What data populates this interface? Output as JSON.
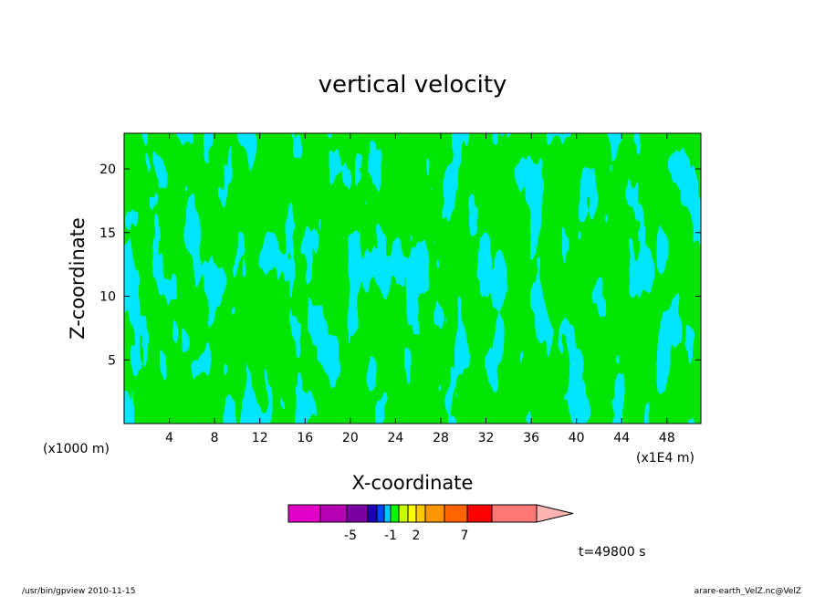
{
  "chart_data": {
    "type": "heatmap",
    "title": "vertical velocity",
    "xlabel": "X-coordinate",
    "ylabel": "Z-coordinate",
    "x_unit": "(x1000 m)",
    "x_unit_right": "(x1E4 m)",
    "xlim": [
      0,
      51
    ],
    "ylim": [
      0,
      22.8
    ],
    "x_ticks": [
      4,
      8,
      12,
      16,
      20,
      24,
      28,
      32,
      36,
      40,
      44,
      48
    ],
    "y_ticks": [
      5,
      10,
      15,
      20
    ],
    "x_tick_labels": [
      "4",
      "8",
      "12",
      "16",
      "20",
      "24",
      "28",
      "32",
      "36",
      "40",
      "44",
      "48"
    ],
    "y_tick_labels": [
      "5",
      "10",
      "15",
      "20"
    ],
    "colorbar": {
      "colors": [
        "#e000c8",
        "#b400b4",
        "#7800a0",
        "#1e00b4",
        "#0046ff",
        "#00c8ff",
        "#00ff00",
        "#c8ff00",
        "#ffff00",
        "#ffc800",
        "#ff9600",
        "#ff6400",
        "#ff0000",
        "#ff7878",
        "#ffb4b4"
      ],
      "tick_labels": [
        "-5",
        "-1",
        "2",
        "7"
      ],
      "tick_boundary_index": [
        3,
        6,
        8,
        12
      ]
    },
    "fill_colors": {
      "negative": "#00e6ff",
      "positive": "#00e600"
    },
    "time_label": "t=49800 s"
  },
  "footer": {
    "left": "/usr/bin/gpview   2010-11-15",
    "right": "arare-earth_VelZ.nc@VelZ"
  }
}
